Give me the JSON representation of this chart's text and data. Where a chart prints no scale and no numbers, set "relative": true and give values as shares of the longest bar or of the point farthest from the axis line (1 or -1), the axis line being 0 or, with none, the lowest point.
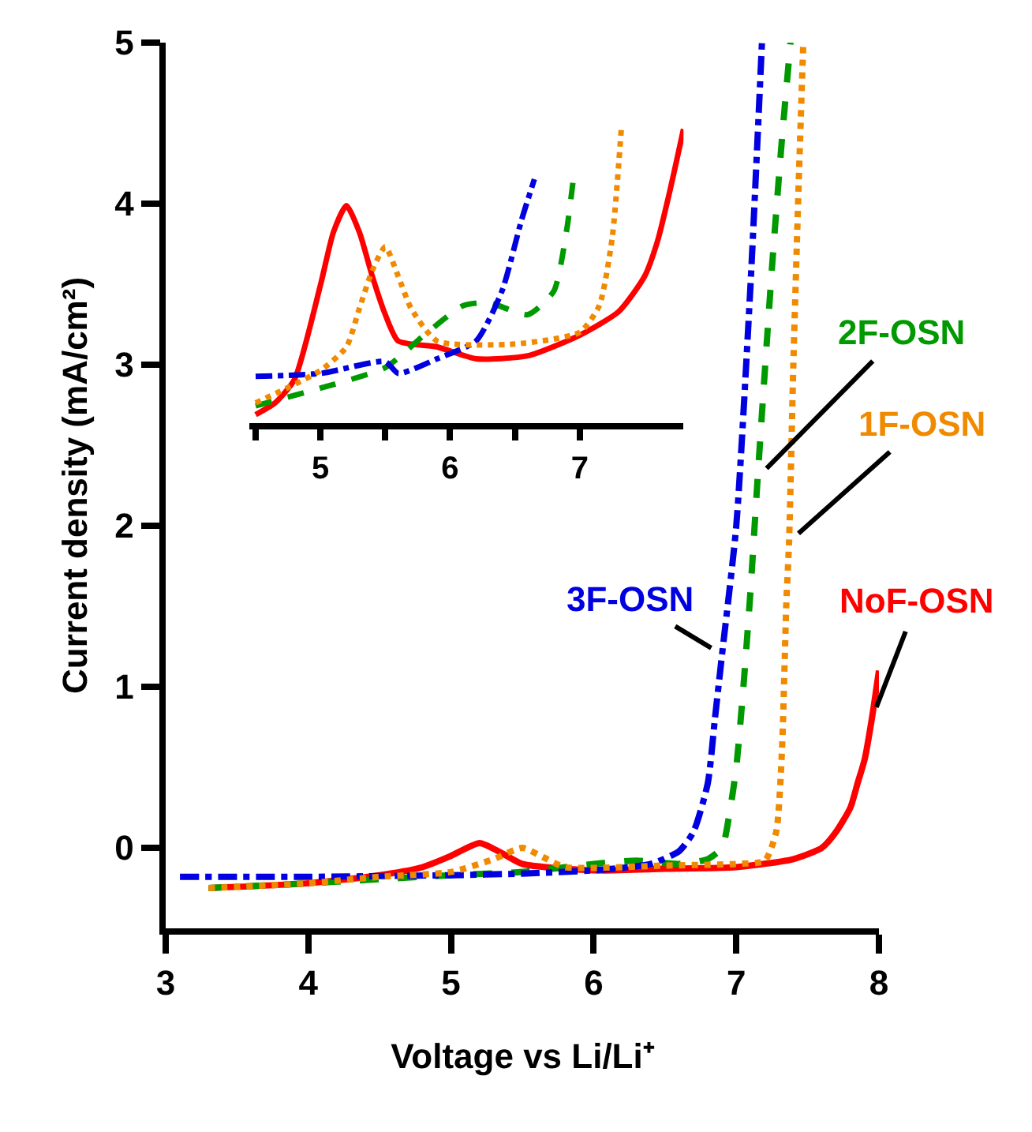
{
  "chart_data": [
    {
      "type": "line",
      "xlabel": "Voltage vs Li/Li⁺",
      "ylabel": "Current density (mA/cm²)",
      "xlim": [
        3,
        8
      ],
      "xticks": [
        3,
        4,
        5,
        6,
        7,
        8
      ],
      "ylim": [
        -0.5,
        5
      ],
      "yticks": [
        0,
        1,
        2,
        3,
        4,
        5
      ],
      "series": [
        {
          "color": "#ff0000",
          "line_style": "solid",
          "x": [
            3.3,
            4.0,
            4.5,
            4.8,
            5.0,
            5.2,
            5.35,
            5.5,
            6.0,
            6.5,
            7.0,
            7.4,
            7.6,
            7.7,
            7.8,
            7.85,
            7.9,
            7.95,
            8.0
          ],
          "values": [
            -0.25,
            -0.22,
            -0.17,
            -0.12,
            -0.05,
            0.03,
            -0.03,
            -0.1,
            -0.14,
            -0.13,
            -0.12,
            -0.07,
            0.0,
            0.1,
            0.25,
            0.4,
            0.55,
            0.8,
            1.1
          ]
        },
        {
          "color": "#f08a00",
          "line_style": "dotted",
          "x": [
            3.3,
            4.0,
            4.5,
            5.0,
            5.3,
            5.5,
            5.65,
            5.8,
            6.5,
            7.0,
            7.2,
            7.28,
            7.32,
            7.35,
            7.37,
            7.4,
            7.44,
            7.47
          ],
          "values": [
            -0.25,
            -0.22,
            -0.18,
            -0.15,
            -0.07,
            0.0,
            -0.06,
            -0.12,
            -0.11,
            -0.1,
            -0.08,
            0.1,
            0.6,
            1.5,
            1.9,
            3.0,
            4.2,
            5.0
          ]
        },
        {
          "color": "#009a00",
          "line_style": "dashed",
          "x": [
            3.3,
            4.0,
            5.0,
            5.5,
            6.0,
            6.3,
            6.6,
            6.8,
            6.9,
            6.95,
            7.0,
            7.05,
            7.1,
            7.15,
            7.25,
            7.32,
            7.38
          ],
          "values": [
            -0.25,
            -0.22,
            -0.17,
            -0.15,
            -0.1,
            -0.08,
            -0.1,
            -0.07,
            0.0,
            0.2,
            0.5,
            1.0,
            1.6,
            2.3,
            3.6,
            4.4,
            5.0
          ]
        },
        {
          "color": "#0000e0",
          "line_style": "dashdot",
          "x": [
            3.1,
            4.0,
            5.0,
            5.5,
            6.0,
            6.4,
            6.6,
            6.7,
            6.8,
            6.85,
            6.9,
            7.0,
            7.1,
            7.18
          ],
          "values": [
            -0.18,
            -0.18,
            -0.17,
            -0.16,
            -0.14,
            -0.1,
            -0.02,
            0.1,
            0.4,
            0.8,
            1.2,
            2.0,
            3.5,
            5.0
          ]
        }
      ],
      "annotations": [
        {
          "text": "NoF-OSN",
          "x": 7.95,
          "y": 0.8
        },
        {
          "text": "1F-OSN",
          "x": 7.37,
          "y": 1.9
        },
        {
          "text": "2F-OSN",
          "x": 7.15,
          "y": 2.3
        },
        {
          "text": "3F-OSN",
          "x": 6.9,
          "y": 1.2
        }
      ]
    },
    {
      "type": "line",
      "relative": true,
      "xlim": [
        4.45,
        7.8
      ],
      "xticks": [
        {
          "value": 4.5,
          "label": null
        },
        5,
        {
          "value": 5.5,
          "label": null
        },
        6,
        {
          "value": 6.5,
          "label": null
        },
        7
      ],
      "tick_labels": "x",
      "series": [
        {
          "color": "#ff0000",
          "line_style": "solid",
          "x": [
            4.5,
            4.65,
            4.8,
            5.0,
            5.1,
            5.2,
            5.3,
            5.4,
            5.5,
            5.6,
            5.9,
            6.2,
            6.6,
            7.0,
            7.3,
            7.5,
            7.6,
            7.7,
            7.8
          ],
          "values": [
            0.03,
            0.07,
            0.15,
            0.47,
            0.65,
            0.74,
            0.65,
            0.5,
            0.37,
            0.28,
            0.26,
            0.22,
            0.23,
            0.3,
            0.38,
            0.5,
            0.62,
            0.8,
            1.0
          ]
        },
        {
          "color": "#f08a00",
          "line_style": "dotted",
          "x": [
            4.5,
            5.0,
            5.2,
            5.3,
            5.4,
            5.5,
            5.6,
            5.7,
            5.9,
            6.5,
            7.0,
            7.15,
            7.25,
            7.32
          ],
          "values": [
            0.07,
            0.18,
            0.26,
            0.39,
            0.52,
            0.6,
            0.5,
            0.39,
            0.28,
            0.27,
            0.31,
            0.4,
            0.63,
            1.0
          ]
        },
        {
          "color": "#009a00",
          "line_style": "dashed",
          "x": [
            4.5,
            5.0,
            5.5,
            5.8,
            6.1,
            6.3,
            6.6,
            6.8,
            6.9,
            6.95
          ],
          "values": [
            0.06,
            0.12,
            0.19,
            0.3,
            0.4,
            0.41,
            0.37,
            0.45,
            0.66,
            0.83
          ]
        },
        {
          "color": "#0000e0",
          "line_style": "dashdot",
          "x": [
            4.5,
            5.0,
            5.5,
            5.6,
            5.9,
            6.2,
            6.4,
            6.55,
            6.65
          ],
          "values": [
            0.16,
            0.17,
            0.21,
            0.17,
            0.22,
            0.28,
            0.45,
            0.69,
            0.83
          ]
        }
      ]
    }
  ]
}
